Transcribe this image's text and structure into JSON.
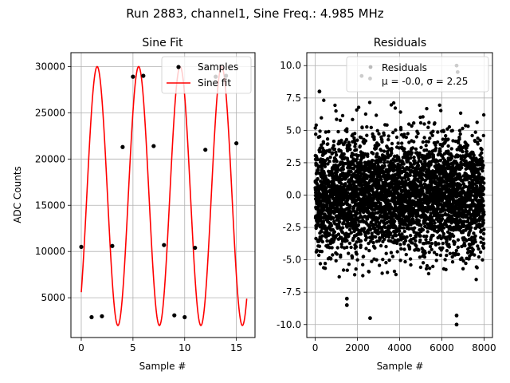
{
  "figure": {
    "suptitle": "Run 2883, channel1, Sine Freq.: 4.985 MHz"
  },
  "colors": {
    "samples": "#000000",
    "fit": "#ff0000",
    "grid": "#b0b0b0",
    "frame": "#000000"
  },
  "chart_data": [
    {
      "type": "scatter",
      "title": "Sine Fit",
      "xlabel": "Sample #",
      "ylabel": "ADC Counts",
      "xlim": [
        -1,
        16.8
      ],
      "ylim": [
        700,
        31500
      ],
      "xticks": [
        0,
        5,
        10,
        15
      ],
      "yticks": [
        5000,
        10000,
        15000,
        20000,
        25000,
        30000
      ],
      "grid": true,
      "legend": {
        "placement": "top-right",
        "entries": [
          "Samples",
          "Sine fit"
        ]
      },
      "series": [
        {
          "name": "Samples",
          "x": [
            0,
            1,
            2,
            3,
            4,
            5,
            6,
            7,
            8,
            9,
            10,
            11,
            12,
            13,
            14,
            15
          ],
          "y": [
            10500,
            2900,
            3000,
            10600,
            21300,
            28900,
            29000,
            21400,
            10700,
            3100,
            2900,
            10400,
            21000,
            28900,
            29000,
            21700
          ]
        },
        {
          "name": "Sine fit",
          "type": "line",
          "model": {
            "offset": 16000,
            "amplitude": 14000,
            "period": 4.0125,
            "peak_at": 5.55
          },
          "x_range": [
            0,
            16
          ]
        }
      ]
    },
    {
      "type": "scatter",
      "title": "Residuals",
      "xlabel": "Sample #",
      "ylabel": "",
      "xlim": [
        -400,
        8400
      ],
      "ylim": [
        -11,
        11
      ],
      "xticks": [
        0,
        2000,
        4000,
        6000,
        8000
      ],
      "yticks": [
        -10.0,
        -7.5,
        -5.0,
        -2.5,
        0.0,
        2.5,
        5.0,
        7.5,
        10.0
      ],
      "grid": true,
      "legend": {
        "placement": "top-right",
        "entries": [
          "Residuals",
          "μ = -0.0, σ = 2.25"
        ]
      },
      "series": [
        {
          "name": "Residuals",
          "n_points": 8000,
          "mean": -0.0,
          "sigma": 2.25,
          "x_range": [
            0,
            8000
          ],
          "notable_points": [
            [
              200,
              8.0
            ],
            [
              2200,
              9.2
            ],
            [
              2600,
              -9.5
            ],
            [
              6700,
              10.0
            ],
            [
              6700,
              -10.0
            ],
            [
              2600,
              9.0
            ],
            [
              1500,
              -8.5
            ],
            [
              1500,
              -8.0
            ],
            [
              6700,
              -9.3
            ],
            [
              6750,
              9.5
            ]
          ]
        }
      ]
    }
  ]
}
